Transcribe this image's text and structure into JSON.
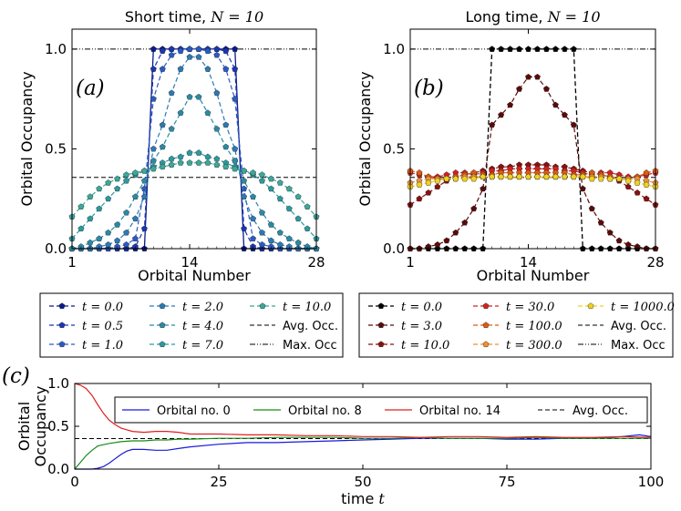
{
  "chart_data": [
    {
      "id": "a",
      "type": "line",
      "panel_label": "(a)",
      "title": "Short time, N = 10",
      "title_text": "Short time, ",
      "title_math": "N = 10",
      "xlabel": "Orbital Number",
      "ylabel": "Orbital Occupancy",
      "xlim": [
        1,
        28
      ],
      "ylim": [
        0,
        1.1
      ],
      "xticks": [
        "1",
        "14",
        "28"
      ],
      "yticks": [
        "0.0",
        "0.5",
        "1.0"
      ],
      "avg_occ": 0.357,
      "max_occ": 1.0,
      "series": [
        {
          "name": "t = 0.0",
          "label_t": "t = 0.0",
          "color": "#0a1a8a",
          "values": [
            0,
            0,
            0,
            0,
            0,
            0,
            0,
            0,
            0,
            1,
            1,
            1,
            1,
            1,
            1,
            1,
            1,
            1,
            1,
            0,
            0,
            0,
            0,
            0,
            0,
            0,
            0,
            0
          ]
        },
        {
          "name": "t = 0.5",
          "label_t": "t = 0.5",
          "color": "#1a36b4",
          "values": [
            0,
            0,
            0,
            0,
            0,
            0,
            0,
            0.01,
            0.1,
            0.9,
            0.99,
            1,
            1,
            1,
            1,
            1,
            1,
            0.99,
            0.9,
            0.1,
            0.01,
            0,
            0,
            0,
            0,
            0,
            0,
            0
          ]
        },
        {
          "name": "t = 1.0",
          "label_t": "t = 1.0",
          "color": "#2a5ac6",
          "values": [
            0,
            0,
            0,
            0,
            0,
            0.01,
            0.02,
            0.05,
            0.3,
            0.75,
            0.9,
            0.97,
            0.99,
            1,
            1,
            0.99,
            0.97,
            0.9,
            0.75,
            0.3,
            0.05,
            0.02,
            0.01,
            0,
            0,
            0,
            0,
            0
          ]
        },
        {
          "name": "t = 2.0",
          "label_t": "t = 2.0",
          "color": "#2a7ab6",
          "values": [
            0,
            0,
            0,
            0.01,
            0.02,
            0.04,
            0.08,
            0.15,
            0.26,
            0.5,
            0.62,
            0.78,
            0.9,
            0.96,
            0.96,
            0.9,
            0.78,
            0.62,
            0.5,
            0.26,
            0.15,
            0.08,
            0.04,
            0.02,
            0.01,
            0,
            0,
            0
          ]
        },
        {
          "name": "t = 4.0",
          "label_t": "t = 4.0",
          "color": "#2a8aa6",
          "values": [
            0,
            0.01,
            0.03,
            0.05,
            0.08,
            0.12,
            0.18,
            0.26,
            0.34,
            0.44,
            0.51,
            0.6,
            0.68,
            0.76,
            0.76,
            0.68,
            0.6,
            0.51,
            0.44,
            0.34,
            0.26,
            0.18,
            0.12,
            0.08,
            0.05,
            0.03,
            0.01,
            0
          ]
        },
        {
          "name": "t = 7.0",
          "label_t": "t = 7.0",
          "color": "#2a9aa0",
          "values": [
            0.05,
            0.1,
            0.15,
            0.2,
            0.25,
            0.3,
            0.34,
            0.37,
            0.39,
            0.41,
            0.43,
            0.45,
            0.46,
            0.48,
            0.48,
            0.46,
            0.45,
            0.43,
            0.41,
            0.39,
            0.37,
            0.34,
            0.3,
            0.25,
            0.2,
            0.15,
            0.1,
            0.05
          ]
        },
        {
          "name": "t = 10.0",
          "label_t": "t = 10.0",
          "color": "#3aa89a",
          "values": [
            0.16,
            0.21,
            0.26,
            0.3,
            0.33,
            0.35,
            0.37,
            0.38,
            0.39,
            0.4,
            0.41,
            0.42,
            0.43,
            0.43,
            0.43,
            0.43,
            0.42,
            0.41,
            0.4,
            0.39,
            0.38,
            0.37,
            0.35,
            0.33,
            0.3,
            0.26,
            0.21,
            0.16
          ]
        }
      ],
      "legend_extra": [
        "Avg. Occ.",
        "Max. Occ"
      ]
    },
    {
      "id": "b",
      "type": "line",
      "panel_label": "(b)",
      "title": "Long time, N = 10",
      "title_text": "Long time, ",
      "title_math": "N = 10",
      "xlabel": "Orbital Number",
      "ylabel": "Orbital Occupancy",
      "xlim": [
        1,
        28
      ],
      "ylim": [
        0,
        1.1
      ],
      "xticks": [
        "1",
        "14",
        "28"
      ],
      "yticks": [
        "0.0",
        "0.5",
        "1.0"
      ],
      "avg_occ": 0.357,
      "max_occ": 1.0,
      "series": [
        {
          "name": "t = 0.0",
          "label_t": "t = 0.0",
          "color": "#000000",
          "values": [
            0,
            0,
            0,
            0,
            0,
            0,
            0,
            0,
            0,
            1,
            1,
            1,
            1,
            1,
            1,
            1,
            1,
            1,
            1,
            0,
            0,
            0,
            0,
            0,
            0,
            0,
            0,
            0
          ]
        },
        {
          "name": "t = 3.0",
          "label_t": "t = 3.0",
          "color": "#5a0a0a",
          "values": [
            0,
            0,
            0.01,
            0.02,
            0.04,
            0.08,
            0.13,
            0.2,
            0.3,
            0.62,
            0.67,
            0.72,
            0.8,
            0.86,
            0.86,
            0.8,
            0.72,
            0.67,
            0.62,
            0.3,
            0.2,
            0.13,
            0.08,
            0.04,
            0.02,
            0.01,
            0,
            0
          ]
        },
        {
          "name": "t = 10.0",
          "label_t": "t = 10.0",
          "color": "#8a1010",
          "values": [
            0.22,
            0.25,
            0.28,
            0.31,
            0.34,
            0.36,
            0.37,
            0.38,
            0.39,
            0.4,
            0.41,
            0.41,
            0.42,
            0.42,
            0.42,
            0.42,
            0.41,
            0.41,
            0.4,
            0.39,
            0.38,
            0.37,
            0.36,
            0.34,
            0.31,
            0.28,
            0.25,
            0.22
          ]
        },
        {
          "name": "t = 30.0",
          "label_t": "t = 30.0",
          "color": "#d42020",
          "values": [
            0.38,
            0.37,
            0.36,
            0.36,
            0.37,
            0.38,
            0.38,
            0.37,
            0.38,
            0.39,
            0.39,
            0.4,
            0.4,
            0.4,
            0.4,
            0.4,
            0.4,
            0.39,
            0.39,
            0.38,
            0.37,
            0.38,
            0.38,
            0.37,
            0.36,
            0.36,
            0.37,
            0.38
          ]
        },
        {
          "name": "t = 100.0",
          "label_t": "t = 100.0",
          "color": "#e05a10",
          "values": [
            0.39,
            0.38,
            0.36,
            0.35,
            0.35,
            0.36,
            0.37,
            0.38,
            0.37,
            0.37,
            0.38,
            0.38,
            0.38,
            0.38,
            0.38,
            0.38,
            0.38,
            0.38,
            0.37,
            0.37,
            0.38,
            0.37,
            0.36,
            0.35,
            0.35,
            0.36,
            0.38,
            0.39
          ]
        },
        {
          "name": "t = 300.0",
          "label_t": "t = 300.0",
          "color": "#f09030",
          "values": [
            0.33,
            0.34,
            0.35,
            0.35,
            0.35,
            0.35,
            0.36,
            0.36,
            0.36,
            0.36,
            0.36,
            0.36,
            0.36,
            0.36,
            0.36,
            0.36,
            0.36,
            0.36,
            0.36,
            0.36,
            0.36,
            0.36,
            0.35,
            0.35,
            0.35,
            0.35,
            0.34,
            0.33
          ]
        },
        {
          "name": "t = 1000.0",
          "label_t": "t = 1000.0",
          "color": "#f0d020",
          "values": [
            0.31,
            0.32,
            0.33,
            0.34,
            0.35,
            0.35,
            0.35,
            0.35,
            0.36,
            0.36,
            0.36,
            0.36,
            0.36,
            0.36,
            0.36,
            0.36,
            0.36,
            0.36,
            0.36,
            0.36,
            0.35,
            0.35,
            0.35,
            0.35,
            0.34,
            0.33,
            0.32,
            0.31
          ]
        }
      ],
      "legend_extra": [
        "Avg. Occ.",
        "Max. Occ"
      ]
    },
    {
      "id": "c",
      "type": "line",
      "panel_label": "(c)",
      "xlabel": "time t",
      "xlabel_text": "time ",
      "xlabel_math": "t",
      "ylabel_lines": [
        "Orbital",
        "Occupancy"
      ],
      "xlim": [
        0,
        100
      ],
      "ylim": [
        0,
        1.0
      ],
      "xticks": [
        "0",
        "25",
        "50",
        "75",
        "100"
      ],
      "yticks": [
        "0.0",
        "0.5",
        "1.0"
      ],
      "avg_occ": 0.357,
      "series": [
        {
          "name": "Orbital no. 0",
          "color": "#1a1adc",
          "x": [
            0,
            2,
            3,
            4,
            5,
            6,
            7,
            8,
            9,
            10,
            12,
            14,
            16,
            18,
            20,
            25,
            30,
            35,
            40,
            45,
            50,
            55,
            60,
            65,
            70,
            75,
            80,
            85,
            90,
            95,
            98,
            100
          ],
          "values": [
            0,
            0,
            0,
            0.01,
            0.03,
            0.07,
            0.12,
            0.17,
            0.21,
            0.23,
            0.23,
            0.22,
            0.22,
            0.24,
            0.26,
            0.29,
            0.31,
            0.31,
            0.32,
            0.33,
            0.34,
            0.35,
            0.36,
            0.36,
            0.36,
            0.35,
            0.35,
            0.36,
            0.36,
            0.38,
            0.4,
            0.38
          ]
        },
        {
          "name": "Orbital no. 8",
          "color": "#1a8a1a",
          "x": [
            0,
            1,
            2,
            3,
            4,
            6,
            8,
            10,
            12,
            14,
            16,
            18,
            20,
            25,
            30,
            35,
            40,
            45,
            50,
            55,
            60,
            65,
            70,
            75,
            80,
            85,
            90,
            95,
            100
          ],
          "values": [
            0,
            0.08,
            0.16,
            0.22,
            0.27,
            0.3,
            0.32,
            0.33,
            0.33,
            0.34,
            0.34,
            0.35,
            0.35,
            0.36,
            0.36,
            0.37,
            0.37,
            0.37,
            0.36,
            0.36,
            0.37,
            0.36,
            0.36,
            0.36,
            0.37,
            0.36,
            0.36,
            0.36,
            0.36
          ]
        },
        {
          "name": "Orbital no. 14",
          "color": "#e02020",
          "x": [
            0,
            1,
            2,
            3,
            4,
            5,
            6,
            7,
            8,
            9,
            10,
            12,
            14,
            16,
            18,
            20,
            25,
            30,
            35,
            40,
            45,
            50,
            55,
            60,
            65,
            70,
            75,
            80,
            85,
            90,
            95,
            100
          ],
          "values": [
            1.0,
            0.98,
            0.94,
            0.86,
            0.75,
            0.65,
            0.57,
            0.52,
            0.48,
            0.46,
            0.44,
            0.43,
            0.44,
            0.44,
            0.43,
            0.41,
            0.41,
            0.4,
            0.4,
            0.39,
            0.39,
            0.38,
            0.38,
            0.37,
            0.38,
            0.38,
            0.37,
            0.38,
            0.37,
            0.37,
            0.38,
            0.37
          ]
        }
      ],
      "legend_extra": [
        "Avg. Occ."
      ]
    }
  ]
}
